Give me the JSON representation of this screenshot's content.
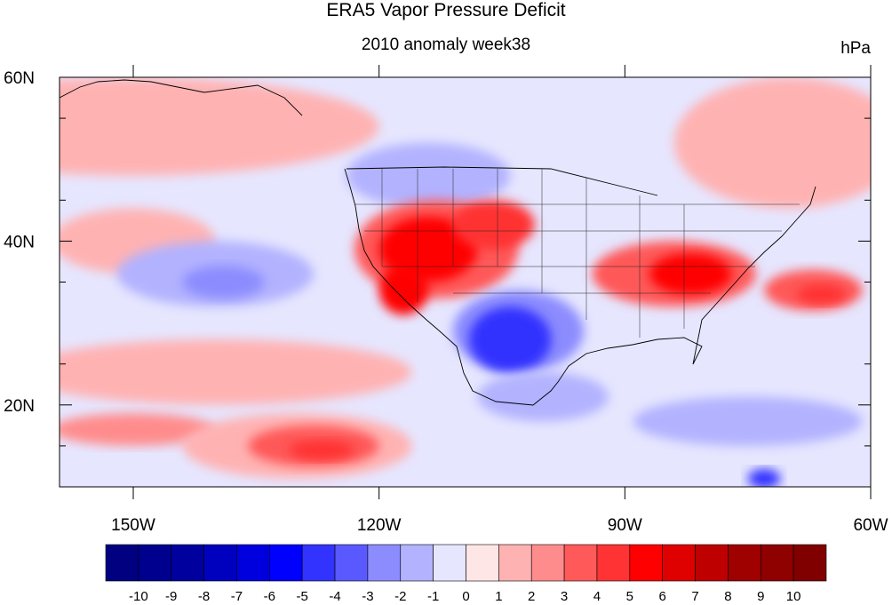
{
  "title": "ERA5 Vapor Pressure Deficit",
  "subtitle": "2010 anomaly week38",
  "units": "hPa",
  "axes": {
    "x_ticks": [
      {
        "value": -150,
        "label": "150W"
      },
      {
        "value": -120,
        "label": "120W"
      },
      {
        "value": -90,
        "label": "90W"
      },
      {
        "value": -60,
        "label": "60W"
      }
    ],
    "y_ticks": [
      {
        "value": 60,
        "label": "60N"
      },
      {
        "value": 40,
        "label": "40N"
      },
      {
        "value": 20,
        "label": "20N"
      }
    ],
    "lon_range": [
      -159,
      -60
    ],
    "lat_range": [
      10,
      60
    ]
  },
  "colorbar": {
    "labels": [
      "-10",
      "-9",
      "-8",
      "-7",
      "-6",
      "-5",
      "-4",
      "-3",
      "-2",
      "-1",
      "0",
      "1",
      "2",
      "3",
      "4",
      "5",
      "6",
      "7",
      "8",
      "9",
      "10"
    ],
    "colors": [
      "#000080",
      "#00008f",
      "#00009f",
      "#0000bf",
      "#0000df",
      "#0000ff",
      "#3333ff",
      "#5959ff",
      "#8c8cff",
      "#b2b2ff",
      "#e6e6ff",
      "#ffe6e6",
      "#ffb2b2",
      "#ff8c8c",
      "#ff5959",
      "#ff3333",
      "#ff0000",
      "#df0000",
      "#bf0000",
      "#9f0000",
      "#8f0000",
      "#800000"
    ]
  },
  "map": {
    "background": "#e6e6ff",
    "anomaly_regions": [
      {
        "name": "pacific-north-pink",
        "level": 1,
        "lon": -150,
        "lat": 54,
        "rlon": 30,
        "rlat": 6
      },
      {
        "name": "atlantic-north-pink",
        "level": 1,
        "lon": -70,
        "lat": 52,
        "rlon": 14,
        "rlat": 8
      },
      {
        "name": "pacific-east-pink",
        "level": 1,
        "lon": -150,
        "lat": 40,
        "rlon": 10,
        "rlat": 4
      },
      {
        "name": "pacific-sw-pink",
        "level": 1,
        "lon": -140,
        "lat": 24,
        "rlon": 24,
        "rlat": 4
      },
      {
        "name": "hawaii-pink",
        "level": 2,
        "lon": -150,
        "lat": 17,
        "rlon": 10,
        "rlat": 2
      },
      {
        "name": "east-pacific-tropical-warm",
        "level": 1,
        "lon": -130,
        "lat": 15,
        "rlon": 14,
        "rlat": 4
      },
      {
        "name": "east-pacific-tropical-warm-core",
        "level": 3,
        "lon": -128,
        "lat": 15,
        "rlon": 8,
        "rlat": 2.5
      },
      {
        "name": "east-pacific-tropical-warm-peak",
        "level": 4,
        "lon": -127,
        "lat": 14.5,
        "rlon": 4,
        "rlat": 1.2
      },
      {
        "name": "pacific-blue-30n",
        "level": -2,
        "lon": -140,
        "lat": 36,
        "rlon": 12,
        "rlat": 4
      },
      {
        "name": "pacific-blue-30n-core",
        "level": -3,
        "lon": -139,
        "lat": 35,
        "rlon": 5,
        "rlat": 2
      },
      {
        "name": "northwest-blue",
        "level": -2,
        "lon": -114,
        "lat": 48,
        "rlon": 10,
        "rlat": 4
      },
      {
        "name": "west-us-red",
        "level": 3,
        "lon": -113,
        "lat": 39,
        "rlon": 10,
        "rlat": 6
      },
      {
        "name": "west-us-red-core",
        "level": 5,
        "lon": -114,
        "lat": 39,
        "rlon": 6,
        "rlat": 4
      },
      {
        "name": "socal-red",
        "level": 5,
        "lon": -117,
        "lat": 34,
        "rlon": 3,
        "rlat": 3
      },
      {
        "name": "colorado-red",
        "level": 4,
        "lon": -106,
        "lat": 42,
        "rlon": 5,
        "rlat": 3
      },
      {
        "name": "southwest-blue",
        "level": -3,
        "lon": -103,
        "lat": 29,
        "rlon": 8,
        "rlat": 5
      },
      {
        "name": "southwest-blue-core",
        "level": -5,
        "lon": -104,
        "lat": 28,
        "rlon": 5,
        "rlat": 4
      },
      {
        "name": "mexico-blue",
        "level": -2,
        "lon": -100,
        "lat": 21,
        "rlon": 8,
        "rlat": 3
      },
      {
        "name": "southeast-us-red",
        "level": 3,
        "lon": -84,
        "lat": 36,
        "rlon": 10,
        "rlat": 4
      },
      {
        "name": "southeast-us-red-core",
        "level": 5,
        "lon": -82,
        "lat": 36,
        "rlon": 5,
        "rlat": 2.5
      },
      {
        "name": "atlantic-red",
        "level": 3,
        "lon": -67,
        "lat": 34,
        "rlon": 6,
        "rlat": 2.5
      },
      {
        "name": "atlantic-red-core",
        "level": 4,
        "lon": -66,
        "lat": 33.5,
        "rlon": 3,
        "rlat": 1.2
      },
      {
        "name": "caribbean-blue",
        "level": -2,
        "lon": -75,
        "lat": 18,
        "rlon": 14,
        "rlat": 3
      },
      {
        "name": "southern-blue",
        "level": -5,
        "lon": -73,
        "lat": 11,
        "rlon": 2,
        "rlat": 1.2
      }
    ]
  }
}
